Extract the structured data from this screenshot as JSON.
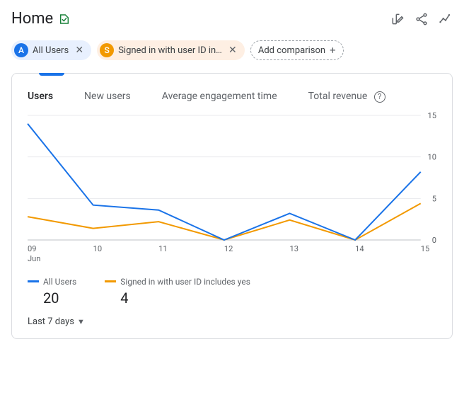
{
  "page_title": "Home",
  "filters": {
    "a": {
      "letter": "A",
      "label": "All Users"
    },
    "b": {
      "letter": "S",
      "label": "Signed in with user ID in…"
    },
    "add_label": "Add comparison"
  },
  "tabs": {
    "users": "Users",
    "new_users": "New users",
    "avg_engagement": "Average engagement time",
    "total_revenue": "Total revenue"
  },
  "chart": {
    "type": "line",
    "x_labels": [
      "09",
      "10",
      "11",
      "12",
      "13",
      "14",
      "15"
    ],
    "x_sublabel": "Jun",
    "y_ticks": [
      0,
      5,
      10,
      15
    ],
    "ylim": [
      0,
      15
    ],
    "series_a": {
      "color": "#1a73e8",
      "values": [
        14,
        4.2,
        3.6,
        0,
        3.2,
        0,
        8.2
      ]
    },
    "series_b": {
      "color": "#f29900",
      "values": [
        2.8,
        1.4,
        2.2,
        0,
        2.4,
        0,
        4.4
      ]
    },
    "grid_color": "#e8eaed",
    "baseline_color": "#bdc1c6",
    "background_color": "#ffffff"
  },
  "legend": {
    "a_label": "All Users",
    "a_value": "20",
    "a_color": "#1a73e8",
    "b_label": "Signed in with user ID includes yes",
    "b_value": "4",
    "b_color": "#f29900"
  },
  "date_range": "Last 7 days"
}
